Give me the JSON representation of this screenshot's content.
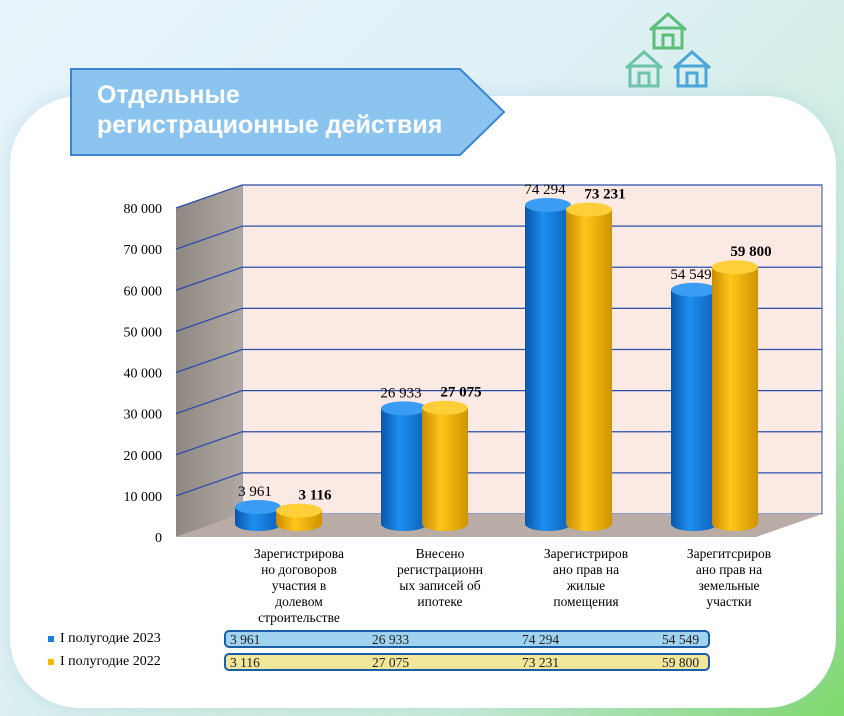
{
  "header": {
    "title_line1": "Отдельные",
    "title_line2": "регистрационные действия"
  },
  "icons": [
    "house-icon",
    "house-icon",
    "house-icon"
  ],
  "colors": {
    "series_2023": "#1e7fd8",
    "series_2022": "#f5b800",
    "banner": "#8cc4f0",
    "grid": "#2b4fa8",
    "wall": "#fbe9e4",
    "floor": "#b9aca6"
  },
  "chart_data": {
    "type": "bar",
    "categories": [
      "Зарегистрирова но договоров участия в долевом строительстве",
      "Внесено регистрационн ых записей об ипотеке",
      "Зарегистриров ано прав на жилые помещения",
      "Зарегитсриров ано прав на земельные участки"
    ],
    "category_lines": [
      [
        "Зарегистрирова",
        "но договоров",
        "участия в",
        "долевом",
        "строительстве"
      ],
      [
        "Внесено",
        "регистрационн",
        "ых записей об",
        "ипотеке"
      ],
      [
        "Зарегистриров",
        "ано прав на",
        "жилые",
        "помещения"
      ],
      [
        "Зарегитсриров",
        "ано прав на",
        "земельные",
        "участки"
      ]
    ],
    "series": [
      {
        "name": "I полугодие 2023",
        "values": [
          3961,
          26933,
          74294,
          54549
        ]
      },
      {
        "name": "I полугодие 2022",
        "values": [
          3116,
          27075,
          73231,
          59800
        ]
      }
    ],
    "data_labels": [
      [
        "3 961",
        "26 933",
        "74 294",
        "54 549"
      ],
      [
        "3 116",
        "27 075",
        "73 231",
        "59 800"
      ]
    ],
    "y_ticks": [
      "0",
      "10 000",
      "20 000",
      "30 000",
      "40 000",
      "50 000",
      "60 000",
      "70 000",
      "80 000"
    ],
    "ylim": [
      0,
      80000
    ],
    "grid": true,
    "legend": "bottom-left data table"
  }
}
